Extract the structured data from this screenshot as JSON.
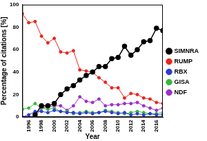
{
  "chart_data": {
    "type": "line",
    "x_label": "Year",
    "y_label": "Percentage of citations [%]",
    "x": [
      1995,
      1996,
      1997,
      1998,
      1999,
      2000,
      2001,
      2002,
      2003,
      2004,
      2005,
      2006,
      2007,
      2008,
      2009,
      2010,
      2011,
      2012,
      2013,
      2014,
      2015,
      2016,
      2017
    ],
    "xlim": [
      1995,
      2017
    ],
    "xticks": [
      1996,
      1998,
      2000,
      2002,
      2004,
      2006,
      2008,
      2010,
      2012,
      2014,
      2016
    ],
    "ylim": [
      0,
      100
    ],
    "yticks": [
      0,
      20,
      40,
      60,
      80,
      100
    ],
    "grid": false,
    "legend": "right",
    "marker": "circle",
    "series": [
      {
        "name": "SIMNRA",
        "color": "#000000",
        "values": [
          null,
          null,
          2,
          10,
          10,
          12,
          20,
          25,
          28,
          33,
          37,
          40,
          45,
          45,
          52,
          53,
          63,
          55,
          60,
          67,
          68,
          79,
          77
        ]
      },
      {
        "name": "RUMP",
        "color": "#e8251c",
        "values": [
          92,
          84,
          85,
          72,
          66,
          70,
          58,
          57,
          59,
          42,
          41,
          40,
          35,
          31,
          26,
          26,
          17,
          21,
          20,
          17,
          16,
          13,
          12
        ]
      },
      {
        "name": "RBX",
        "color": "#2a3bd4",
        "values": [
          0,
          2,
          5,
          5,
          4,
          6,
          5,
          4,
          4,
          3,
          4,
          3,
          4,
          5,
          4,
          3,
          4,
          2,
          3,
          2,
          3,
          2,
          2
        ]
      },
      {
        "name": "GISA",
        "color": "#3cb53c",
        "values": [
          7,
          8,
          12,
          8,
          7,
          8,
          5,
          5,
          3,
          4,
          5,
          4,
          4,
          6,
          5,
          4,
          3,
          4,
          5,
          4,
          3,
          3,
          4
        ]
      },
      {
        "name": "NDF",
        "color": "#9b30c8",
        "values": [
          0,
          0,
          0,
          8,
          9,
          10,
          10,
          6,
          10,
          18,
          14,
          13,
          16,
          10,
          11,
          11,
          12,
          12,
          13,
          10,
          8,
          6,
          8
        ]
      }
    ]
  }
}
